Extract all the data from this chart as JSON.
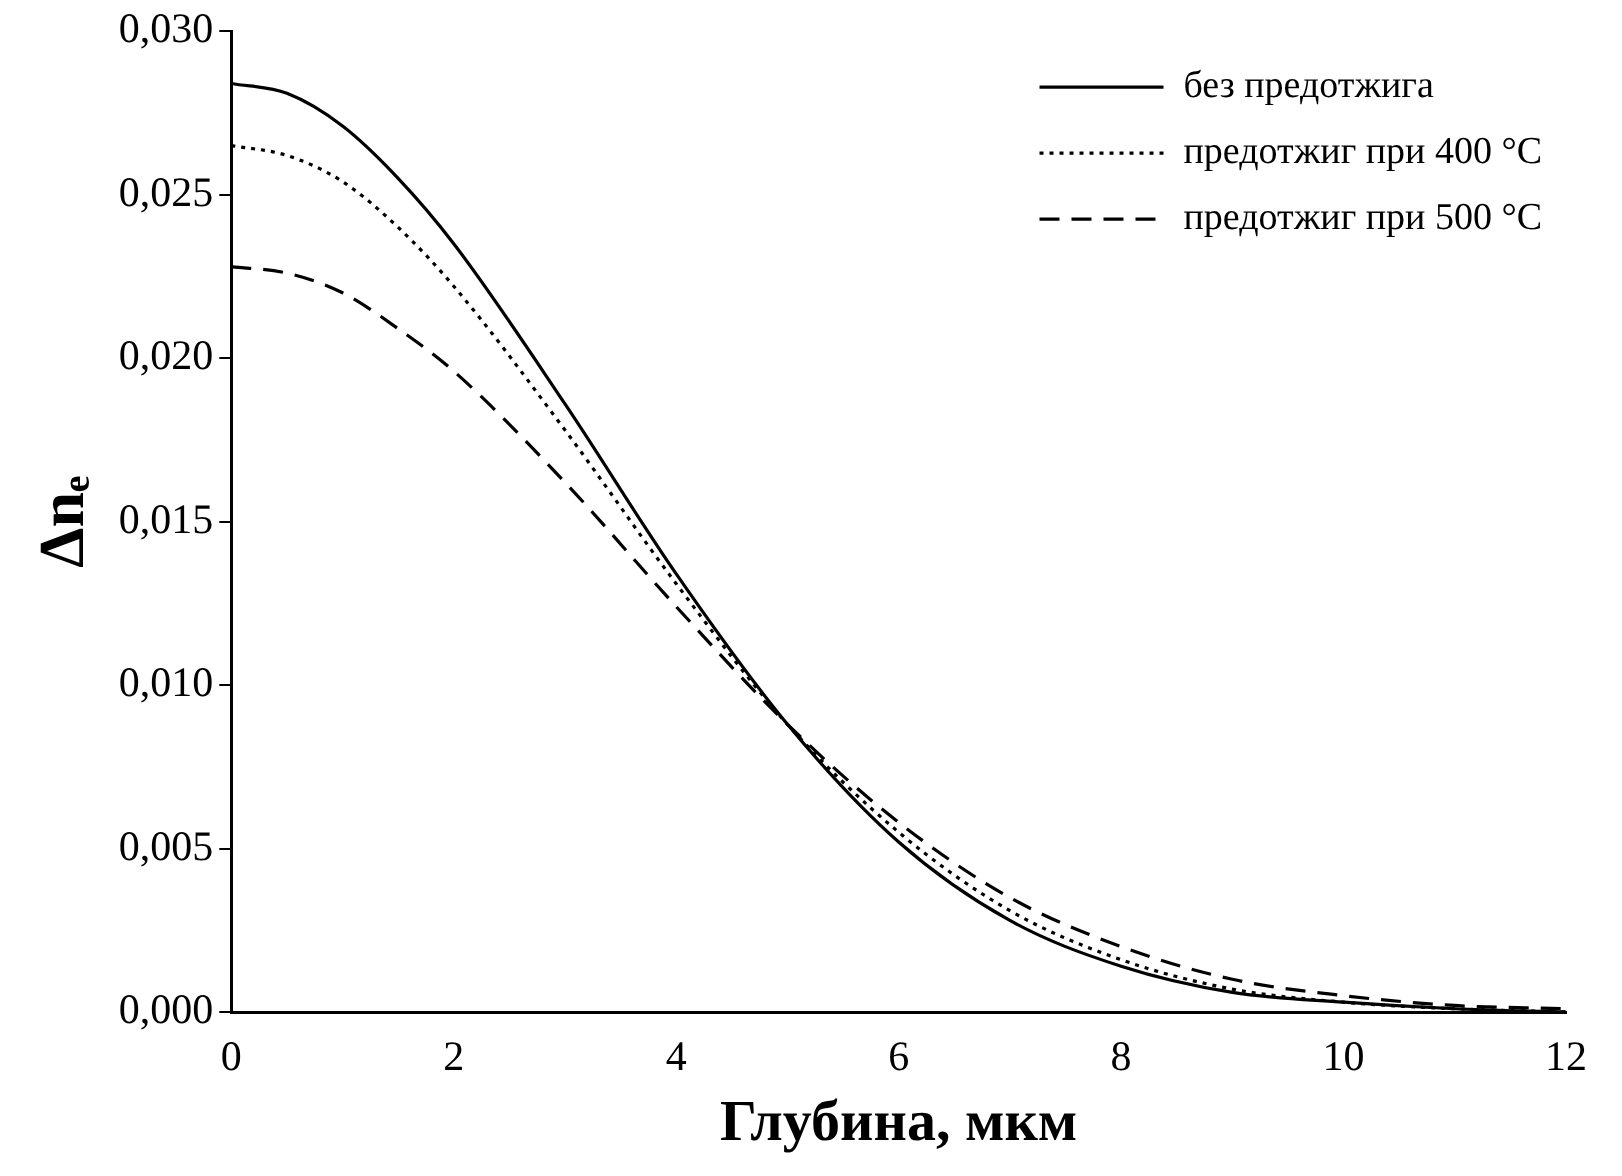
{
  "chart_data": {
    "type": "line",
    "xlabel": "Глубина, мкм",
    "ylabel": "Δnₑ",
    "x": [
      0,
      0.5,
      1,
      1.5,
      2,
      3,
      4,
      5,
      6,
      7,
      8,
      9,
      10,
      11,
      12
    ],
    "series": [
      {
        "name": "без предотжига",
        "color": "#000000",
        "line_style": "solid",
        "values": [
          0.0284,
          0.0281,
          0.0271,
          0.0255,
          0.0235,
          0.0186,
          0.0134,
          0.0088,
          0.0052,
          0.0028,
          0.0014,
          0.0006,
          0.0003,
          0.0001,
          0
        ]
      },
      {
        "name": "предотжиг при 400 °C",
        "color": "#000000",
        "line_style": "dotted",
        "values": [
          0.0265,
          0.0262,
          0.0254,
          0.024,
          0.0222,
          0.0178,
          0.0131,
          0.0088,
          0.0055,
          0.0031,
          0.0016,
          0.0007,
          0.0003,
          0.0001,
          0
        ]
      },
      {
        "name": "предотжиг при 500 °C",
        "color": "#000000",
        "line_style": "dashed",
        "values": [
          0.0228,
          0.0226,
          0.022,
          0.0209,
          0.0196,
          0.0162,
          0.0124,
          0.0088,
          0.0058,
          0.0035,
          0.002,
          0.001,
          0.0005,
          0.0002,
          0.0001
        ]
      }
    ],
    "xlim": [
      0,
      12
    ],
    "xticks": [
      0,
      2,
      4,
      6,
      8,
      10,
      12
    ],
    "ylim": [
      0,
      0.03
    ],
    "yticks": [
      {
        "value": 0,
        "label": "0,000"
      },
      {
        "value": 0.005,
        "label": "0,005"
      },
      {
        "value": 0.01,
        "label": "0,010"
      },
      {
        "value": 0.015,
        "label": "0,015"
      },
      {
        "value": 0.02,
        "label": "0,020"
      },
      {
        "value": 0.025,
        "label": "0,025"
      },
      {
        "value": 0.03,
        "label": "0,030"
      }
    ],
    "grid": false,
    "legend": "top right",
    "marker": "none"
  }
}
